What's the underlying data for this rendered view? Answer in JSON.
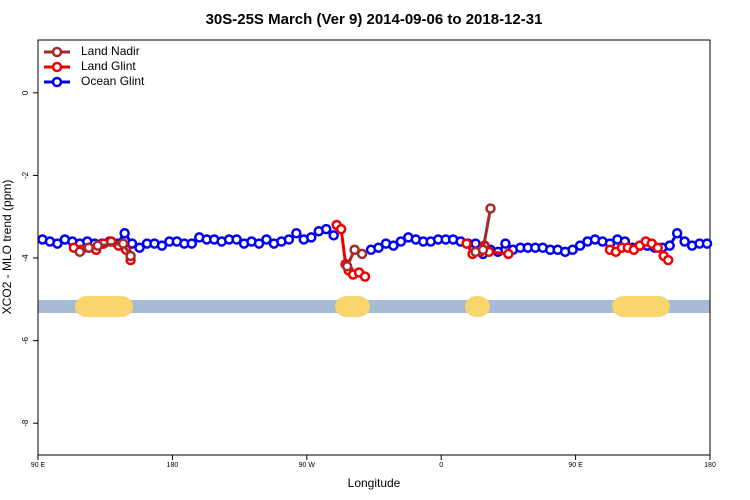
{
  "chart_data": {
    "type": "line",
    "title": "30S-25S March (Ver 9)   2014-09-06 to 2018-12-31",
    "x_label": "Longitude",
    "y_label": "XCO2 - MLO trend (ppm)",
    "xlim": [
      90,
      540
    ],
    "xticks": [
      {
        "value": 90,
        "label": "90 E"
      },
      {
        "value": 180,
        "label": "180"
      },
      {
        "value": 270,
        "label": "90 W"
      },
      {
        "value": 360,
        "label": "0"
      },
      {
        "value": 450,
        "label": "90 E"
      },
      {
        "value": 540,
        "label": "180"
      }
    ],
    "ylim": [
      -8.77,
      1.28
    ],
    "yticks": [
      0,
      -2,
      -4,
      -6,
      -8
    ],
    "legend": "topleft",
    "series": [
      {
        "name": "Land Nadir",
        "color": "#a52a2a",
        "x": [
          118,
          124,
          130,
          147,
          152,
          200,
          297,
          302,
          307,
          350,
          383,
          388,
          393
        ],
        "values": [
          -3.85,
          -3.75,
          -3.7,
          -3.65,
          -3.95,
          null,
          -4.2,
          -3.8,
          -3.9,
          null,
          -3.85,
          -3.8,
          -2.8
        ]
      },
      {
        "name": "Land Glint",
        "color": "#ee0000",
        "x": [
          114,
          119,
          124,
          129,
          134,
          139,
          144,
          149,
          152,
          200,
          290,
          293,
          296,
          298,
          301,
          305,
          309,
          350,
          377,
          381,
          386,
          389,
          392,
          405,
          440,
          473,
          477,
          481,
          485,
          489,
          493,
          497,
          501,
          505,
          509,
          512
        ],
        "values": [
          -3.75,
          -3.8,
          -3.75,
          -3.8,
          -3.65,
          -3.6,
          -3.7,
          -3.8,
          -4.05,
          null,
          -3.2,
          -3.3,
          -4.15,
          -4.3,
          -4.4,
          -4.35,
          -4.45,
          null,
          -3.65,
          -3.9,
          -3.85,
          -3.7,
          -3.85,
          -3.9,
          null,
          -3.8,
          -3.85,
          -3.75,
          -3.75,
          -3.8,
          -3.7,
          -3.6,
          -3.65,
          -3.75,
          -3.95,
          -4.05
        ]
      },
      {
        "name": "Ocean Glint",
        "color": "#0000ee",
        "x": [
          93,
          98,
          103,
          108,
          113,
          118,
          123,
          128,
          133,
          138,
          143,
          148,
          153,
          158,
          163,
          168,
          173,
          178,
          183,
          188,
          193,
          198,
          203,
          208,
          213,
          218,
          223,
          228,
          233,
          238,
          243,
          248,
          253,
          258,
          263,
          268,
          273,
          278,
          283,
          288,
          300,
          313,
          318,
          323,
          328,
          333,
          338,
          343,
          348,
          353,
          358,
          363,
          368,
          373,
          378,
          383,
          388,
          393,
          398,
          403,
          408,
          413,
          418,
          423,
          428,
          433,
          438,
          443,
          448,
          453,
          458,
          463,
          468,
          473,
          478,
          483,
          488,
          493,
          498,
          503,
          508,
          513,
          518,
          523,
          528,
          533,
          538
        ],
        "values": [
          -3.55,
          -3.6,
          -3.65,
          -3.55,
          -3.6,
          -3.65,
          -3.6,
          -3.65,
          -3.65,
          -3.6,
          -3.65,
          -3.4,
          -3.65,
          -3.75,
          -3.65,
          -3.65,
          -3.7,
          -3.6,
          -3.6,
          -3.65,
          -3.65,
          -3.5,
          -3.55,
          -3.55,
          -3.6,
          -3.55,
          -3.55,
          -3.65,
          -3.6,
          -3.65,
          -3.55,
          -3.65,
          -3.6,
          -3.55,
          -3.4,
          -3.55,
          -3.5,
          -3.35,
          -3.3,
          -3.45,
          null,
          -3.8,
          -3.75,
          -3.65,
          -3.7,
          -3.6,
          -3.5,
          -3.55,
          -3.6,
          -3.6,
          -3.55,
          -3.55,
          -3.55,
          -3.6,
          -3.65,
          -3.65,
          -3.9,
          -3.8,
          -3.85,
          -3.65,
          -3.8,
          -3.75,
          -3.75,
          -3.75,
          -3.75,
          -3.8,
          -3.8,
          -3.85,
          -3.8,
          -3.7,
          -3.6,
          -3.55,
          -3.6,
          -3.65,
          -3.55,
          -3.6,
          -3.75,
          -3.7,
          -3.7,
          -3.75,
          -3.75,
          -3.7,
          -3.4,
          -3.6,
          -3.7,
          -3.65,
          -3.65
        ]
      }
    ]
  }
}
